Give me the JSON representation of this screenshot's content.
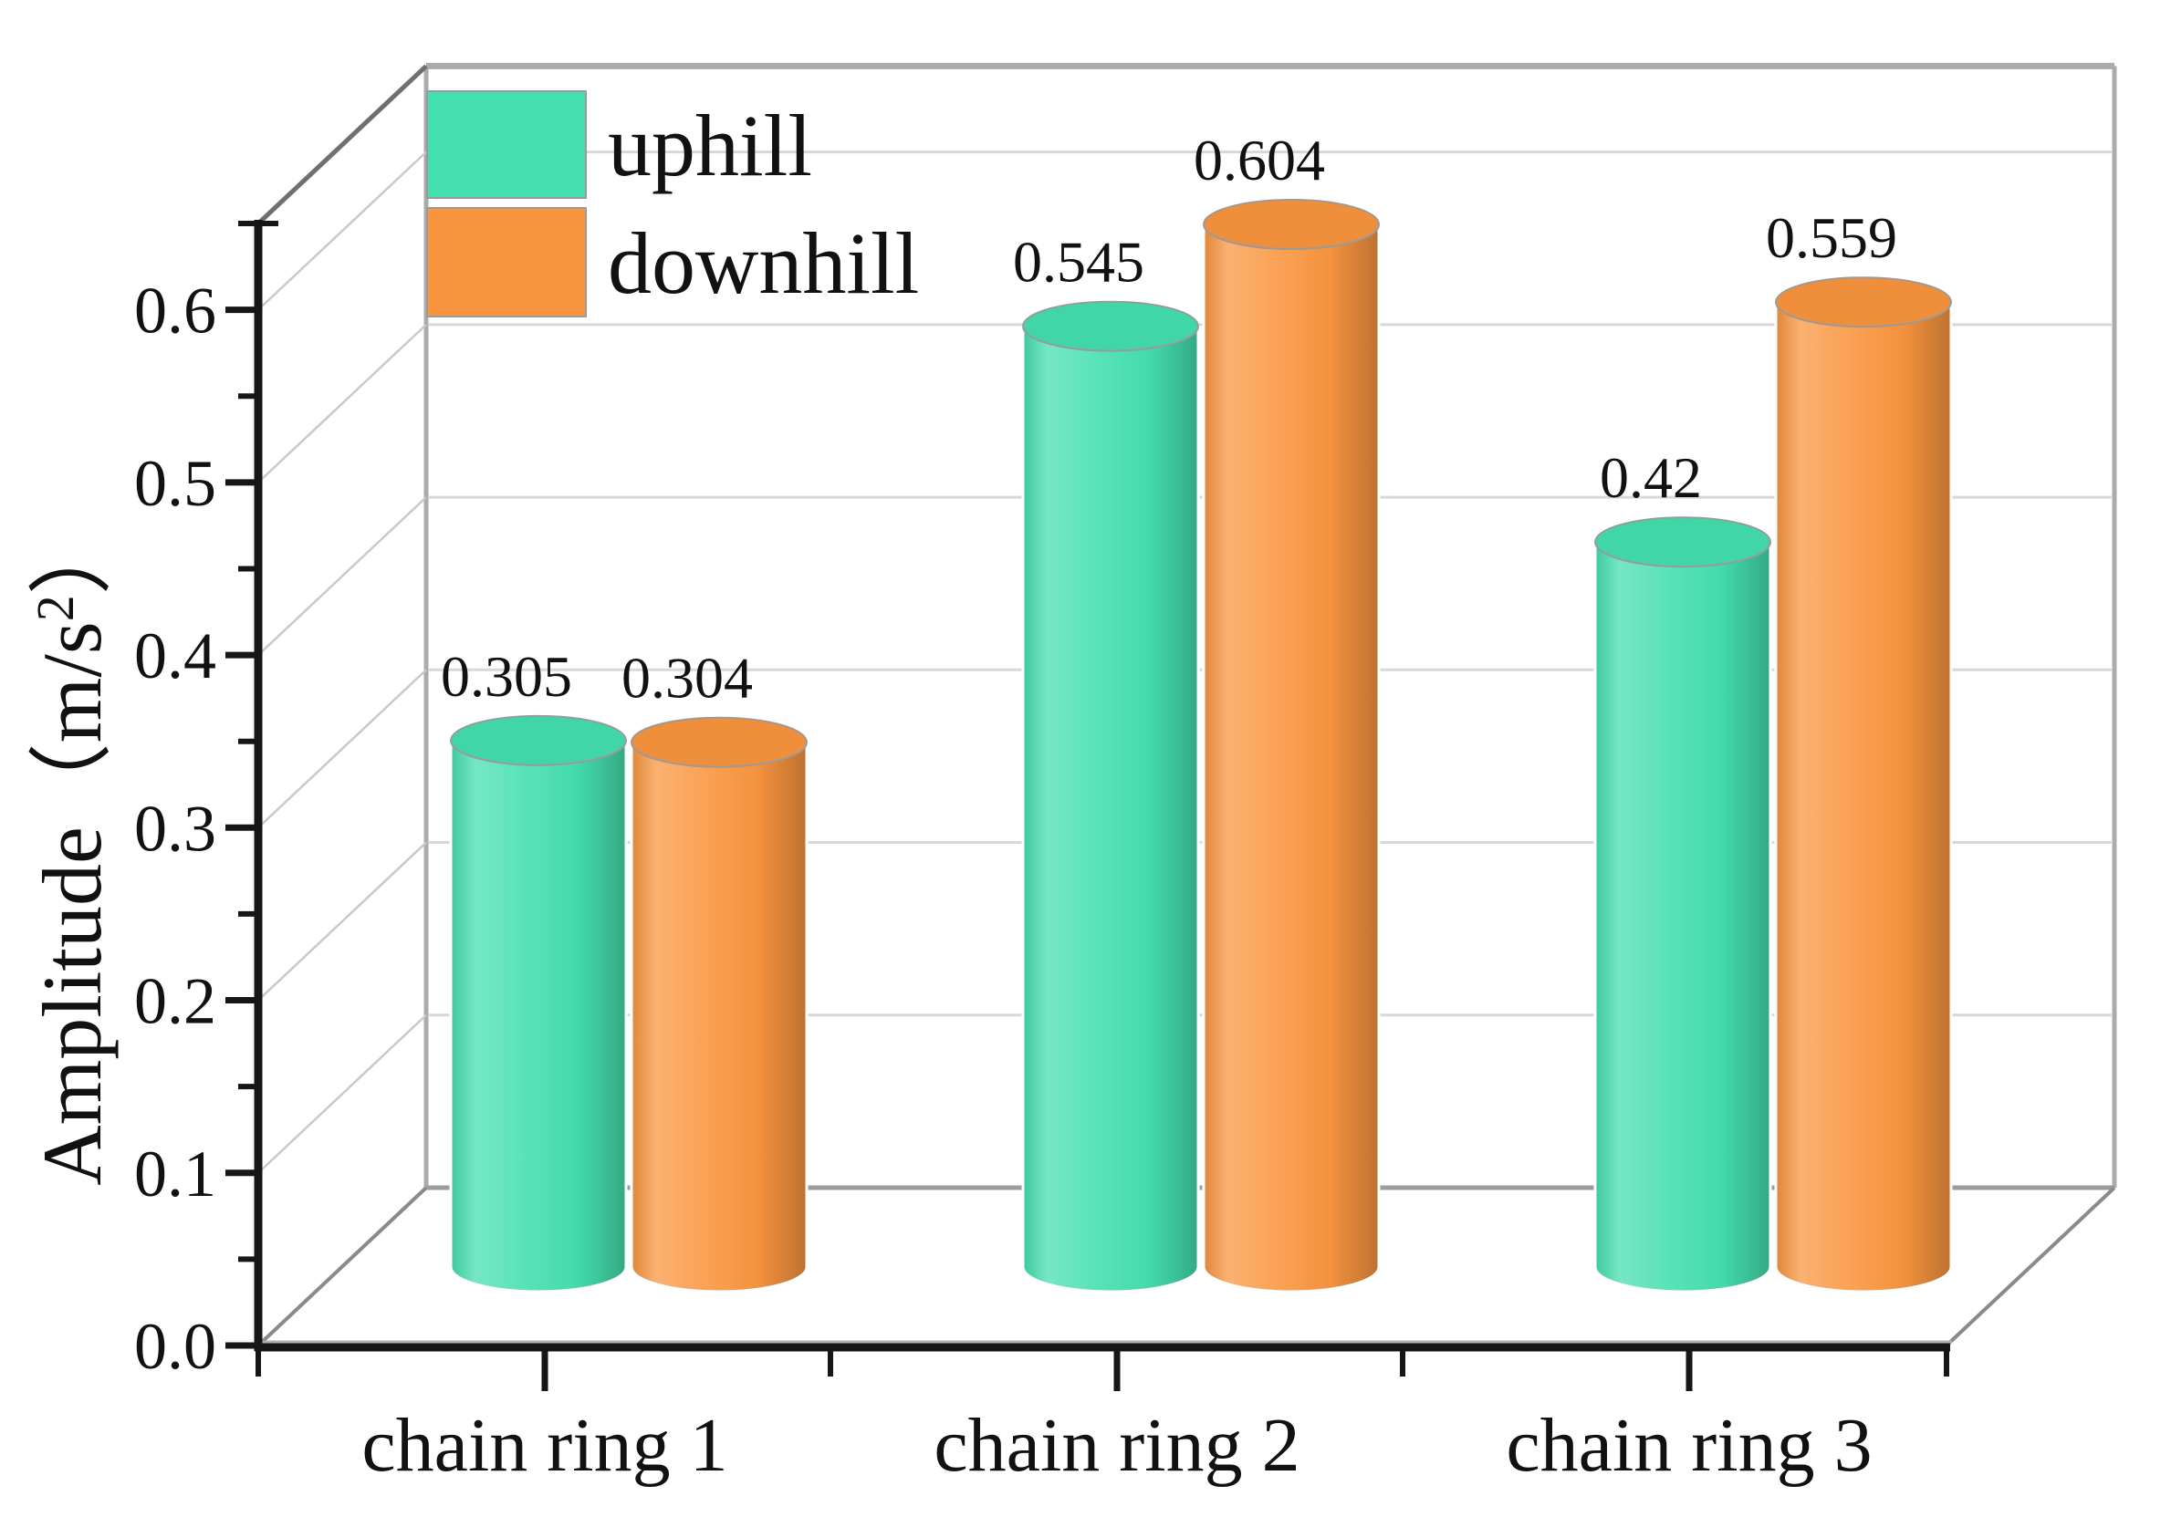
{
  "chart_data": {
    "type": "bar",
    "subtype": "3d-cylinder-column",
    "categories": [
      "chain ring 1",
      "chain ring 2",
      "chain ring 3"
    ],
    "series": [
      {
        "name": "uphill",
        "color": "#44DFAE",
        "values": [
          0.305,
          0.545,
          0.42
        ],
        "labels": [
          "0.305",
          "0.545",
          "0.42"
        ]
      },
      {
        "name": "downhill",
        "color": "#F9953F",
        "values": [
          0.304,
          0.604,
          0.559
        ],
        "labels": [
          "0.304",
          "0.604",
          "0.559"
        ]
      }
    ],
    "title": "",
    "xlabel": "",
    "ylabel": {
      "prefix": "Amplitude（m/s",
      "sup": "2",
      "suffix": "）",
      "plain": "Amplitude（m/s²）"
    },
    "ylim": [
      0,
      0.65
    ],
    "y_major_ticks": [
      "0.0",
      "0.1",
      "0.2",
      "0.3",
      "0.4",
      "0.5",
      "0.6"
    ],
    "y_major_values": [
      0,
      0.1,
      0.2,
      0.3,
      0.4,
      0.5,
      0.6
    ],
    "y_minor_step": 0.05,
    "grid": "horizontal-major-on-back-wall",
    "legend_position": "top-left-inside"
  },
  "legend": {
    "items": [
      {
        "label": "uphill",
        "color": "#44DFAE"
      },
      {
        "label": "downhill",
        "color": "#F9953F"
      }
    ]
  },
  "colors": {
    "background": "#ffffff",
    "axis": "#161616",
    "gridline": "#d8d8d8",
    "wall_edge": "#ababab",
    "floor_edge": "#9c9c9c",
    "diag_thin": "#c9c9c9",
    "diag_dark": "#8a8a8a",
    "top_left_edge": "#6f6f6f",
    "text": "#111111"
  }
}
